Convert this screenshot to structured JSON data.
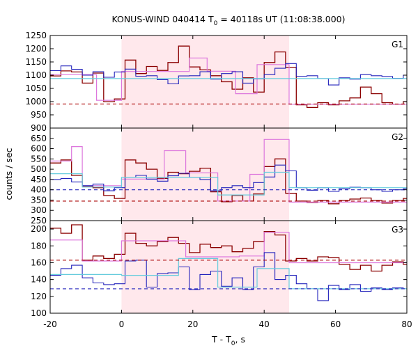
{
  "chart_data": {
    "type": "line",
    "title_main": "KONUS-WIND 040414 T",
    "title_sub": "0",
    "title_rest": " = 40118s UT (11:08:38.000)",
    "xlabel_main": "T - T",
    "xlabel_sub": "0",
    "xlabel_rest": ", s",
    "ylabel": "counts / sec",
    "xlim": [
      -20,
      80
    ],
    "xticks": [
      "-20",
      "0",
      "20",
      "40",
      "60",
      "80"
    ],
    "shaded_interval": [
      0,
      47
    ],
    "colors": {
      "bin_series": "#8b0000",
      "coarse_bin_series": "#dd77dd",
      "fine_series": "#2222bb",
      "fit_line": "#66ccdd",
      "bg_dark": "#aa0000",
      "bg_blue": "#2222bb",
      "shade": "#ffe8ec"
    },
    "panels": [
      {
        "label": "G1",
        "ylim": [
          900,
          1250
        ],
        "yticks": [
          "900",
          "950",
          "1000",
          "1050",
          "1100",
          "1150",
          "1200",
          "1250"
        ],
        "series": [
          {
            "style": "bin_series",
            "x": [
              -20,
              -17,
              -14,
              -11,
              -8,
              -5,
              -2,
              1,
              4,
              7,
              10,
              13,
              16,
              19,
              22,
              25,
              28,
              31,
              34,
              37,
              40,
              43,
              46,
              49,
              52,
              55,
              58,
              61,
              64,
              67,
              70,
              73,
              76,
              79
            ],
            "y": [
              1097,
              1116,
              1112,
              1070,
              1108,
              1000,
              1010,
              1157,
              1106,
              1133,
              1118,
              1148,
              1210,
              1131,
              1120,
              1098,
              1075,
              1047,
              1090,
              1036,
              1148,
              1188,
              1130,
              988,
              978,
              996,
              988,
              1003,
              1014,
              1055,
              1030,
              996,
              990,
              1000
            ]
          },
          {
            "style": "coarse_bin_series",
            "x": [
              -20,
              -11,
              -7,
              0,
              13,
              19,
              24,
              32,
              38,
              47
            ],
            "y": [
              1102,
              1102,
              1005,
              1114,
              1114,
              1165,
              1115,
              1030,
              1140,
              990
            ]
          },
          {
            "style": "fine_series",
            "x": [
              -20,
              -17,
              -14,
              -11,
              -8,
              -5,
              -2,
              1,
              4,
              7,
              10,
              13,
              16,
              19,
              22,
              25,
              28,
              31,
              34,
              37,
              40,
              43,
              46,
              49,
              52,
              55,
              58,
              61,
              64,
              67,
              70,
              73,
              76,
              79
            ],
            "y": [
              1117,
              1135,
              1122,
              1100,
              1113,
              1092,
              1112,
              1123,
              1096,
              1098,
              1083,
              1067,
              1097,
              1098,
              1113,
              1085,
              1106,
              1113,
              1070,
              1086,
              1102,
              1126,
              1144,
              1096,
              1098,
              1087,
              1063,
              1090,
              1085,
              1102,
              1098,
              1095,
              1088,
              1100
            ]
          },
          {
            "style": "fit_line",
            "x": [
              -20,
              47,
              80
            ],
            "y": [
              1087,
              1087,
              1087
            ]
          }
        ],
        "background_levels": [
          {
            "style": "bg_dark",
            "value": 991
          }
        ]
      },
      {
        "label": "G2",
        "ylim": [
          250,
          700
        ],
        "yticks": [
          "250",
          "300",
          "350",
          "400",
          "450",
          "500",
          "550",
          "600",
          "650"
        ],
        "series": [
          {
            "style": "bin_series",
            "x": [
              -20,
              -17,
              -14,
              -11,
              -8,
              -5,
              -2,
              1,
              4,
              7,
              10,
              13,
              16,
              19,
              22,
              25,
              28,
              31,
              34,
              37,
              40,
              43,
              46,
              49,
              52,
              55,
              58,
              61,
              64,
              67,
              70,
              73,
              76,
              79
            ],
            "y": [
              530,
              545,
              470,
              418,
              410,
              372,
              358,
              545,
              530,
              500,
              455,
              485,
              478,
              490,
              505,
              390,
              342,
              372,
              345,
              380,
              513,
              550,
              383,
              345,
              338,
              348,
              332,
              348,
              355,
              360,
              348,
              335,
              348,
              358
            ]
          },
          {
            "style": "coarse_bin_series",
            "x": [
              -20,
              -17,
              -14,
              -11,
              -8,
              0,
              12,
              18,
              27,
              36,
              40,
              47
            ],
            "y": [
              540,
              540,
              610,
              420,
              420,
              452,
              590,
              482,
              345,
              475,
              645,
              340
            ]
          },
          {
            "style": "fine_series",
            "x": [
              -20,
              -17,
              -14,
              -11,
              -8,
              -5,
              -2,
              1,
              4,
              7,
              10,
              13,
              16,
              19,
              22,
              25,
              28,
              31,
              34,
              37,
              40,
              43,
              46,
              49,
              52,
              55,
              58,
              61,
              64,
              67,
              70,
              73,
              76,
              79
            ],
            "y": [
              450,
              455,
              438,
              420,
              428,
              395,
              410,
              460,
              470,
              452,
              442,
              468,
              480,
              460,
              450,
              395,
              410,
              420,
              410,
              435,
              462,
              520,
              492,
              410,
              398,
              410,
              392,
              405,
              412,
              410,
              400,
              392,
              400,
              405
            ]
          },
          {
            "style": "fit_line",
            "x": [
              -20,
              -11,
              0,
              27,
              40,
              47,
              80
            ],
            "y": [
              478,
              413,
              460,
              375,
              485,
              410,
              395
            ]
          }
        ],
        "background_levels": [
          {
            "style": "bg_dark",
            "value": 345
          },
          {
            "style": "bg_blue",
            "value": 400
          }
        ]
      },
      {
        "label": "G3",
        "ylim": [
          100,
          210
        ],
        "yticks": [
          "100",
          "120",
          "140",
          "160",
          "180",
          "200"
        ],
        "series": [
          {
            "style": "bin_series",
            "x": [
              -20,
              -17,
              -14,
              -11,
              -8,
              -5,
              -2,
              1,
              4,
              7,
              10,
              13,
              16,
              19,
              22,
              25,
              28,
              31,
              34,
              37,
              40,
              43,
              46,
              49,
              52,
              55,
              58,
              61,
              64,
              67,
              70,
              73,
              76,
              79
            ],
            "y": [
              201,
              195,
              205,
              163,
              168,
              165,
              170,
              195,
              183,
              180,
              185,
              190,
              183,
              172,
              182,
              178,
              180,
              173,
              177,
              185,
              197,
              193,
              162,
              165,
              162,
              167,
              166,
              158,
              152,
              157,
              150,
              157,
              161,
              158
            ]
          },
          {
            "style": "coarse_bin_series",
            "x": [
              -20,
              -11,
              0,
              18,
              33,
              40,
              47
            ],
            "y": [
              187,
              162,
              186,
              167,
              168,
              196,
              160
            ]
          },
          {
            "style": "fine_series",
            "x": [
              -20,
              -17,
              -14,
              -11,
              -8,
              -5,
              -2,
              1,
              4,
              7,
              10,
              13,
              16,
              19,
              22,
              25,
              28,
              31,
              34,
              37,
              40,
              43,
              46,
              49,
              52,
              55,
              58,
              61,
              64,
              67,
              70,
              73,
              76,
              79
            ],
            "y": [
              145,
              153,
              157,
              142,
              136,
              134,
              135,
              162,
              163,
              131,
              147,
              148,
              155,
              128,
              146,
              150,
              132,
              142,
              128,
              155,
              172,
              140,
              145,
              135,
              129,
              115,
              133,
              128,
              134,
              126,
              130,
              128,
              130,
              129
            ]
          },
          {
            "style": "fit_line",
            "x": [
              -20,
              0,
              16,
              27,
              38,
              47,
              80
            ],
            "y": [
              146,
              145,
              165,
              131,
              153,
              129,
              128
            ]
          }
        ],
        "background_levels": [
          {
            "style": "bg_dark",
            "value": 163
          },
          {
            "style": "bg_blue",
            "value": 129
          }
        ]
      }
    ]
  }
}
